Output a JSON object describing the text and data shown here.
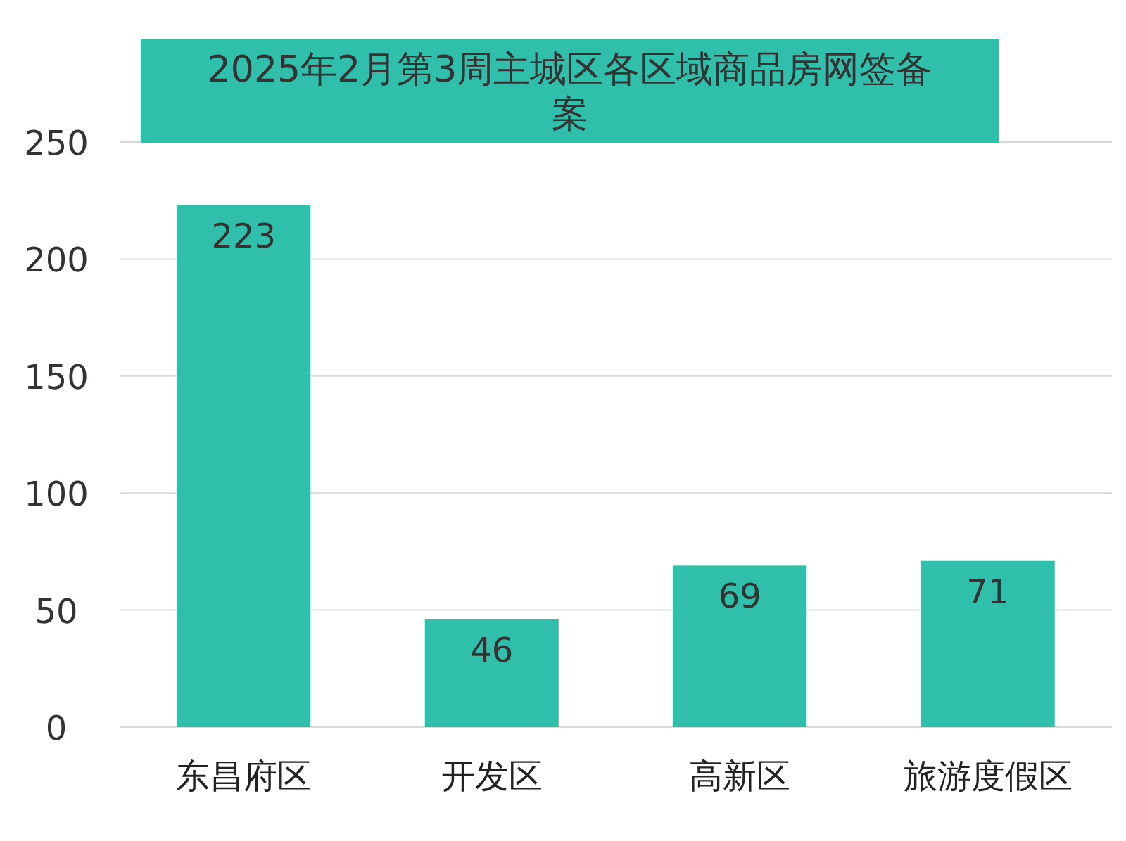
{
  "chart_data": {
    "type": "bar",
    "title": "2025年2月第3周主城区各区域商品房网签备案",
    "categories": [
      "东昌府区",
      "开发区",
      "高新区",
      "旅游度假区"
    ],
    "values": [
      223,
      46,
      69,
      71
    ],
    "color": "#2fbfab",
    "ylim": [
      0,
      250
    ],
    "yticks": [
      0,
      50,
      100,
      150,
      200,
      250
    ],
    "grid": "y",
    "data_labels": true
  }
}
